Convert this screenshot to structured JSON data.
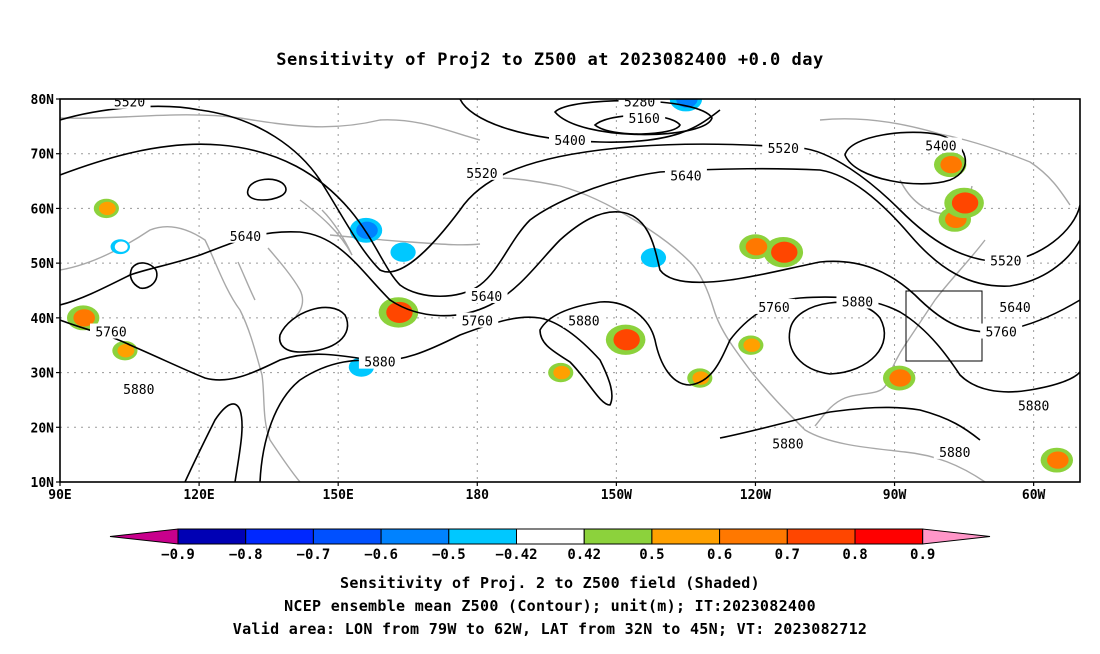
{
  "title": "Sensitivity of Proj2 to Z500 at 2023082400 +0.0 day",
  "map": {
    "lat_labels": [
      "80N",
      "70N",
      "60N",
      "50N",
      "40N",
      "30N",
      "20N",
      "10N"
    ],
    "lon_labels": [
      "90E",
      "120E",
      "150E",
      "180",
      "150W",
      "120W",
      "90W",
      "60W"
    ],
    "lon_range": [
      "90E",
      "50W"
    ],
    "lat_range": [
      "10N",
      "80N"
    ],
    "contour_labels": [
      {
        "text": "5520",
        "lon": 105,
        "lat": 79.5
      },
      {
        "text": "5280",
        "lon": 215,
        "lat": 79.5
      },
      {
        "text": "5160",
        "lon": 216,
        "lat": 76.5
      },
      {
        "text": "5400",
        "lon": 200,
        "lat": 72.5
      },
      {
        "text": "5520",
        "lon": 246,
        "lat": 71.0
      },
      {
        "text": "5400",
        "lon": 280,
        "lat": 71.5
      },
      {
        "text": "5520",
        "lon": 181,
        "lat": 66.5
      },
      {
        "text": "5640",
        "lon": 225,
        "lat": 66.0
      },
      {
        "text": "5640",
        "lon": 130,
        "lat": 55.0
      },
      {
        "text": "5520",
        "lon": 294,
        "lat": 50.5
      },
      {
        "text": "5640",
        "lon": 182,
        "lat": 44.0
      },
      {
        "text": "5880",
        "lon": 262,
        "lat": 43.0
      },
      {
        "text": "5760",
        "lon": 244,
        "lat": 42.0
      },
      {
        "text": "5640",
        "lon": 296,
        "lat": 42.0
      },
      {
        "text": "5760",
        "lon": 180,
        "lat": 39.5
      },
      {
        "text": "5880",
        "lon": 203,
        "lat": 39.5
      },
      {
        "text": "5760",
        "lon": 101,
        "lat": 37.5
      },
      {
        "text": "5760",
        "lon": 293,
        "lat": 37.5
      },
      {
        "text": "5880",
        "lon": 159,
        "lat": 32.0
      },
      {
        "text": "5880",
        "lon": 107,
        "lat": 27.0
      },
      {
        "text": "5880",
        "lon": 300,
        "lat": 24.0
      },
      {
        "text": "5880",
        "lon": 247,
        "lat": 17.0
      },
      {
        "text": "5880",
        "lon": 283,
        "lat": 15.5
      }
    ],
    "valid_box": {
      "lon_min": "79W",
      "lon_max": "62W",
      "lat_min": "32N",
      "lat_max": "45N"
    }
  },
  "colorbar": {
    "labels": [
      "-0.9",
      "-0.8",
      "-0.7",
      "-0.6",
      "-0.5",
      "-0.42",
      "0.42",
      "0.5",
      "0.6",
      "0.7",
      "0.8",
      "0.9"
    ],
    "colors": [
      "#0000b4",
      "#0028ff",
      "#0050ff",
      "#0082ff",
      "#00c8ff",
      "#ffffff",
      "#8cd23c",
      "#ffa000",
      "#ff7800",
      "#ff4600",
      "#ff0000"
    ],
    "low_color": "#c8008c",
    "high_color": "#ff96c8"
  },
  "sensitivity_patches": [
    {
      "lon": 156,
      "lat": 56,
      "v": -0.6
    },
    {
      "lon": 164,
      "lat": 52,
      "v": -0.5
    },
    {
      "lon": 218,
      "lat": 51,
      "v": -0.5
    },
    {
      "lon": 155,
      "lat": 31,
      "v": -0.5
    },
    {
      "lon": 225,
      "lat": 80,
      "v": -0.6
    },
    {
      "lon": 103,
      "lat": 53,
      "v": -0.42
    },
    {
      "lon": 163,
      "lat": 41,
      "v": 0.7
    },
    {
      "lon": 212,
      "lat": 36,
      "v": 0.7
    },
    {
      "lon": 246,
      "lat": 52,
      "v": 0.7
    },
    {
      "lon": 240,
      "lat": 53,
      "v": 0.6
    },
    {
      "lon": 283,
      "lat": 58,
      "v": 0.6
    },
    {
      "lon": 285,
      "lat": 61,
      "v": 0.7
    },
    {
      "lon": 282,
      "lat": 68,
      "v": 0.6
    },
    {
      "lon": 95,
      "lat": 40,
      "v": 0.6
    },
    {
      "lon": 305,
      "lat": 14,
      "v": 0.6
    },
    {
      "lon": 239,
      "lat": 35,
      "v": 0.5
    },
    {
      "lon": 271,
      "lat": 29,
      "v": 0.6
    },
    {
      "lon": 100,
      "lat": 60,
      "v": 0.5
    },
    {
      "lon": 104,
      "lat": 34,
      "v": 0.5
    },
    {
      "lon": 198,
      "lat": 30,
      "v": 0.5
    },
    {
      "lon": 228,
      "lat": 29,
      "v": 0.5
    }
  ],
  "captions": [
    "Sensitivity of Proj. 2 to Z500 field (Shaded)",
    "NCEP ensemble mean Z500 (Contour); unit(m); IT:2023082400",
    "Valid area: LON from 79W to 62W, LAT from 32N to 45N; VT: 2023082712"
  ]
}
